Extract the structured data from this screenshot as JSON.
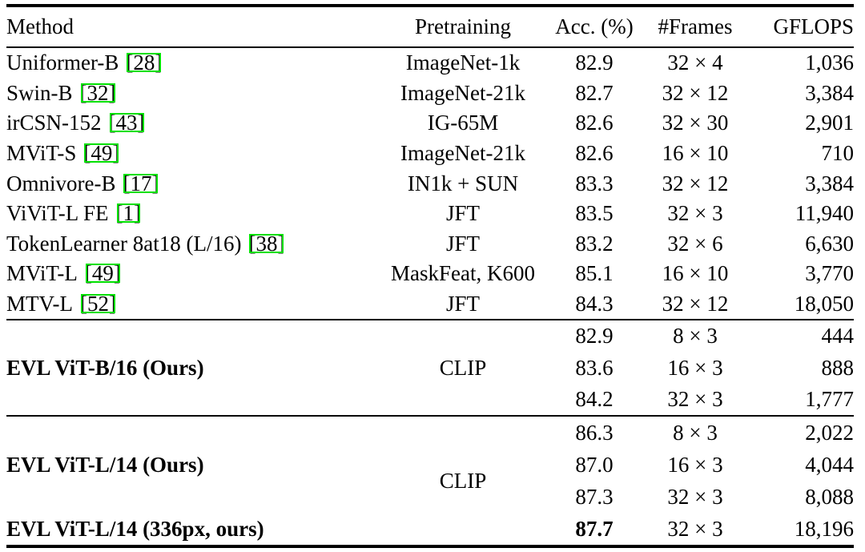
{
  "colors": {
    "background": "#ffffff",
    "text": "#000000",
    "rule": "#000000",
    "cite_box": "#00e000"
  },
  "table": {
    "cite_brackets": {
      "open": "[",
      "close": "]"
    },
    "headers": {
      "method": "Method",
      "pretraining": "Pretraining",
      "acc": "Acc. (%)",
      "frames": "#Frames",
      "gflops": "GFLOPS"
    },
    "rows": [
      {
        "method": "Uniformer-B",
        "cite": "28",
        "pretraining": "ImageNet-1k",
        "acc": "82.9",
        "frames": "32 × 4",
        "gflops": "1,036"
      },
      {
        "method": "Swin-B",
        "cite": "32",
        "pretraining": "ImageNet-21k",
        "acc": "82.7",
        "frames": "32 × 12",
        "gflops": "3,384"
      },
      {
        "method": "irCSN-152",
        "cite": "43",
        "pretraining": "IG-65M",
        "acc": "82.6",
        "frames": "32 × 30",
        "gflops": "2,901"
      },
      {
        "method": "MViT-S",
        "cite": "49",
        "pretraining": "ImageNet-21k",
        "acc": "82.6",
        "frames": "16 × 10",
        "gflops": "710"
      },
      {
        "method": "Omnivore-B",
        "cite": "17",
        "pretraining": "IN1k + SUN",
        "acc": "83.3",
        "frames": "32 × 12",
        "gflops": "3,384"
      },
      {
        "method": "ViViT-L FE",
        "cite": "1",
        "pretraining": "JFT",
        "acc": "83.5",
        "frames": "32 × 3",
        "gflops": "11,940"
      },
      {
        "method": "TokenLearner 8at18 (L/16)",
        "cite": "38",
        "pretraining": "JFT",
        "acc": "83.2",
        "frames": "32 × 6",
        "gflops": "6,630"
      },
      {
        "method": "MViT-L",
        "cite": "49",
        "pretraining": "MaskFeat, K600",
        "acc": "85.1",
        "frames": "16 × 10",
        "gflops": "3,770"
      },
      {
        "method": "MTV-L",
        "cite": "52",
        "pretraining": "JFT",
        "acc": "84.3",
        "frames": "32 × 12",
        "gflops": "18,050"
      }
    ],
    "groups": [
      {
        "method": "EVL ViT-B/16 (Ours)",
        "pretraining": "CLIP",
        "rows": [
          {
            "acc": "82.9",
            "frames": "8 × 3",
            "gflops": "444"
          },
          {
            "acc": "83.6",
            "frames": "16 × 3",
            "gflops": "888"
          },
          {
            "acc": "84.2",
            "frames": "32 × 3",
            "gflops": "1,777"
          }
        ]
      },
      {
        "method": "EVL ViT-L/14 (Ours)",
        "pretraining": "CLIP",
        "rows": [
          {
            "acc": "86.3",
            "frames": "8 × 3",
            "gflops": "2,022"
          },
          {
            "acc": "87.0",
            "frames": "16 × 3",
            "gflops": "4,044"
          },
          {
            "acc": "87.3",
            "frames": "32 × 3",
            "gflops": "8,088"
          }
        ],
        "extra_row": {
          "method": "EVL ViT-L/14 (336px, ours)",
          "acc": "87.7",
          "frames": "32 × 3",
          "gflops": "18,196"
        }
      }
    ]
  }
}
